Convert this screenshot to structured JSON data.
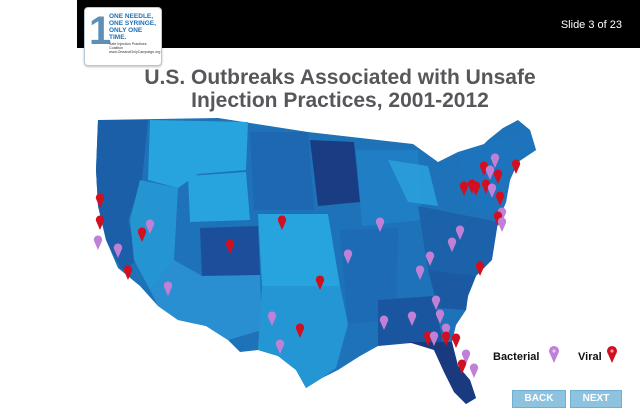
{
  "header": {
    "slide_counter": "Slide 3 of 23"
  },
  "logo": {
    "numeral": "1",
    "lines": [
      "ONE NEEDLE,",
      "ONE SYRINGE,",
      "ONLY ONE TIME."
    ],
    "small_text": "Safe Injection Practices Coalition www.OneandOnlyCampaign.org"
  },
  "title": {
    "line1": "U.S. Outbreaks Associated with Unsafe",
    "line2": "Injection Practices, 2001-2012"
  },
  "legend": {
    "bacterial": "Bacterial",
    "viral": "Viral"
  },
  "colors": {
    "bacterial": "#c080d8",
    "viral": "#d01020",
    "map_dark": "#1b3f86",
    "map_mid": "#1d72b8",
    "map_light": "#27a4dd"
  },
  "nav": {
    "back": "BACK",
    "next": "NEXT"
  }
}
